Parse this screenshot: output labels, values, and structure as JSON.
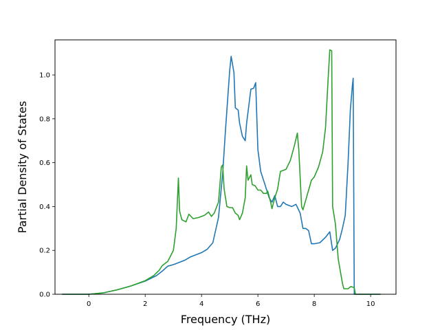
{
  "chart_data": {
    "type": "line",
    "title": "",
    "xlabel": "Frequency (THz)",
    "ylabel": "Partial Density of States",
    "xlim": [
      -1.2,
      10.9
    ],
    "ylim": [
      0.0,
      1.16
    ],
    "xticks": [
      0,
      2,
      4,
      6,
      8,
      10
    ],
    "xtick_labels": [
      "0",
      "2",
      "4",
      "6",
      "8",
      "10"
    ],
    "yticks": [
      0.0,
      0.2,
      0.4,
      0.6,
      0.8,
      1.0
    ],
    "ytick_labels": [
      "0.0",
      "0.2",
      "0.4",
      "0.6",
      "0.8",
      "1.0"
    ],
    "grid": false,
    "series": [
      {
        "color": "#1f77b4",
        "points": [
          [
            -0.95,
            0.0
          ],
          [
            0.0,
            0.0
          ],
          [
            0.5,
            0.006
          ],
          [
            1.0,
            0.02
          ],
          [
            1.5,
            0.038
          ],
          [
            2.0,
            0.06
          ],
          [
            2.4,
            0.085
          ],
          [
            2.6,
            0.105
          ],
          [
            2.8,
            0.128
          ],
          [
            3.0,
            0.135
          ],
          [
            3.2,
            0.145
          ],
          [
            3.4,
            0.155
          ],
          [
            3.6,
            0.17
          ],
          [
            3.8,
            0.18
          ],
          [
            4.0,
            0.19
          ],
          [
            4.2,
            0.205
          ],
          [
            4.4,
            0.235
          ],
          [
            4.6,
            0.35
          ],
          [
            4.75,
            0.55
          ],
          [
            4.85,
            0.75
          ],
          [
            5.0,
            1.02
          ],
          [
            5.05,
            1.085
          ],
          [
            5.15,
            1.01
          ],
          [
            5.2,
            0.85
          ],
          [
            5.3,
            0.84
          ],
          [
            5.35,
            0.78
          ],
          [
            5.45,
            0.72
          ],
          [
            5.55,
            0.7
          ],
          [
            5.6,
            0.78
          ],
          [
            5.75,
            0.935
          ],
          [
            5.85,
            0.94
          ],
          [
            5.92,
            0.965
          ],
          [
            6.0,
            0.66
          ],
          [
            6.1,
            0.56
          ],
          [
            6.25,
            0.5
          ],
          [
            6.4,
            0.44
          ],
          [
            6.5,
            0.42
          ],
          [
            6.6,
            0.45
          ],
          [
            6.7,
            0.4
          ],
          [
            6.8,
            0.4
          ],
          [
            6.9,
            0.42
          ],
          [
            7.0,
            0.41
          ],
          [
            7.2,
            0.4
          ],
          [
            7.35,
            0.41
          ],
          [
            7.5,
            0.37
          ],
          [
            7.6,
            0.3
          ],
          [
            7.7,
            0.3
          ],
          [
            7.8,
            0.29
          ],
          [
            7.9,
            0.23
          ],
          [
            8.0,
            0.23
          ],
          [
            8.2,
            0.235
          ],
          [
            8.4,
            0.26
          ],
          [
            8.55,
            0.285
          ],
          [
            8.65,
            0.2
          ],
          [
            8.75,
            0.21
          ],
          [
            8.9,
            0.25
          ],
          [
            9.0,
            0.3
          ],
          [
            9.1,
            0.36
          ],
          [
            9.2,
            0.6
          ],
          [
            9.28,
            0.84
          ],
          [
            9.35,
            0.95
          ],
          [
            9.38,
            0.985
          ],
          [
            9.42,
            0.0
          ],
          [
            10.35,
            0.0
          ]
        ]
      },
      {
        "color": "#2ca02c",
        "points": [
          [
            -0.95,
            0.0
          ],
          [
            0.0,
            0.0
          ],
          [
            0.5,
            0.006
          ],
          [
            1.0,
            0.02
          ],
          [
            1.5,
            0.038
          ],
          [
            2.0,
            0.062
          ],
          [
            2.3,
            0.085
          ],
          [
            2.5,
            0.11
          ],
          [
            2.6,
            0.13
          ],
          [
            2.8,
            0.15
          ],
          [
            3.0,
            0.2
          ],
          [
            3.1,
            0.3
          ],
          [
            3.18,
            0.53
          ],
          [
            3.22,
            0.38
          ],
          [
            3.3,
            0.34
          ],
          [
            3.45,
            0.33
          ],
          [
            3.55,
            0.365
          ],
          [
            3.7,
            0.345
          ],
          [
            3.9,
            0.35
          ],
          [
            4.1,
            0.36
          ],
          [
            4.25,
            0.375
          ],
          [
            4.35,
            0.355
          ],
          [
            4.45,
            0.37
          ],
          [
            4.6,
            0.42
          ],
          [
            4.7,
            0.58
          ],
          [
            4.75,
            0.59
          ],
          [
            4.8,
            0.48
          ],
          [
            4.9,
            0.4
          ],
          [
            5.0,
            0.395
          ],
          [
            5.1,
            0.395
          ],
          [
            5.2,
            0.37
          ],
          [
            5.3,
            0.36
          ],
          [
            5.35,
            0.34
          ],
          [
            5.45,
            0.37
          ],
          [
            5.55,
            0.44
          ],
          [
            5.6,
            0.585
          ],
          [
            5.65,
            0.52
          ],
          [
            5.75,
            0.545
          ],
          [
            5.8,
            0.5
          ],
          [
            5.9,
            0.495
          ],
          [
            6.0,
            0.475
          ],
          [
            6.1,
            0.475
          ],
          [
            6.2,
            0.46
          ],
          [
            6.3,
            0.46
          ],
          [
            6.35,
            0.47
          ],
          [
            6.45,
            0.42
          ],
          [
            6.5,
            0.39
          ],
          [
            6.6,
            0.44
          ],
          [
            6.7,
            0.48
          ],
          [
            6.8,
            0.56
          ],
          [
            7.0,
            0.57
          ],
          [
            7.15,
            0.61
          ],
          [
            7.3,
            0.68
          ],
          [
            7.4,
            0.735
          ],
          [
            7.45,
            0.66
          ],
          [
            7.55,
            0.4
          ],
          [
            7.6,
            0.385
          ],
          [
            7.7,
            0.43
          ],
          [
            7.9,
            0.52
          ],
          [
            8.0,
            0.535
          ],
          [
            8.15,
            0.58
          ],
          [
            8.3,
            0.65
          ],
          [
            8.4,
            0.76
          ],
          [
            8.5,
            1.0
          ],
          [
            8.55,
            1.115
          ],
          [
            8.62,
            1.11
          ],
          [
            8.65,
            0.4
          ],
          [
            8.75,
            0.32
          ],
          [
            8.85,
            0.16
          ],
          [
            9.0,
            0.05
          ],
          [
            9.05,
            0.025
          ],
          [
            9.2,
            0.025
          ],
          [
            9.3,
            0.035
          ],
          [
            9.42,
            0.03
          ],
          [
            9.46,
            0.0
          ],
          [
            10.35,
            0.0
          ]
        ]
      }
    ]
  }
}
